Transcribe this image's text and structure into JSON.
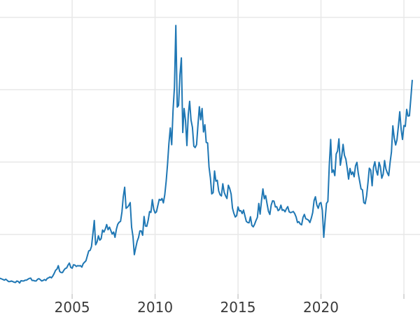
{
  "chart_data": {
    "type": "line",
    "title": "",
    "xlabel": "",
    "ylabel": "",
    "legend": null,
    "line_color": "#1f77b4",
    "grid_color": "#e8e8e8",
    "tick_color": "#cccccc",
    "label_color": "#3a3a3a",
    "background_color": "#ffffff",
    "grid_on": true,
    "xlim": [
      2000.65,
      2025.97
    ],
    "ylim": [
      2.2,
      53.0
    ],
    "x_gridlines": [
      2005,
      2010,
      2015,
      2020,
      2025
    ],
    "x_tick_labels": [
      "2005",
      "2010",
      "2015",
      "2020"
    ],
    "y_gridlines": [
      12.5,
      25,
      37.5,
      50
    ],
    "start_year": 2000.5833,
    "step_years": 0.083333,
    "values": [
      4.95,
      4.9,
      4.8,
      4.7,
      4.6,
      4.75,
      4.55,
      4.35,
      4.35,
      4.45,
      4.35,
      4.25,
      4.2,
      4.45,
      4.35,
      4.1,
      4.5,
      4.45,
      4.45,
      4.6,
      4.6,
      4.75,
      4.9,
      4.95,
      4.55,
      4.55,
      4.45,
      4.45,
      4.75,
      4.85,
      4.65,
      4.45,
      4.55,
      4.7,
      4.55,
      4.9,
      5.0,
      5.15,
      5.0,
      5.3,
      5.75,
      6.3,
      6.5,
      7.1,
      6.1,
      5.9,
      5.9,
      6.3,
      6.6,
      6.7,
      7.2,
      7.55,
      6.8,
      6.65,
      7.25,
      7.2,
      6.95,
      7.1,
      7.05,
      7.1,
      6.85,
      7.45,
      7.7,
      7.95,
      8.8,
      9.65,
      9.75,
      10.4,
      12.6,
      14.9,
      10.7,
      11.2,
      12.25,
      11.5,
      11.75,
      13.25,
      12.9,
      13.45,
      14.2,
      13.3,
      13.75,
      13.15,
      12.55,
      12.9,
      12.0,
      13.4,
      14.25,
      14.6,
      14.75,
      16.35,
      19.0,
      20.65,
      17.0,
      17.2,
      17.5,
      18.0,
      13.75,
      12.1,
      9.0,
      10.2,
      11.3,
      11.95,
      13.1,
      13.1,
      12.35,
      15.6,
      13.95,
      13.9,
      14.95,
      16.45,
      16.3,
      18.5,
      16.85,
      16.2,
      16.4,
      17.5,
      18.55,
      18.4,
      18.7,
      17.95,
      19.35,
      21.7,
      24.55,
      28.2,
      30.9,
      28.0,
      33.9,
      37.9,
      48.6,
      34.5,
      34.8,
      40.1,
      43.0,
      30.1,
      34.25,
      32.2,
      27.85,
      33.25,
      35.5,
      32.25,
      31.0,
      27.75,
      27.5,
      28.0,
      31.4,
      34.55,
      32.3,
      34.25,
      30.2,
      31.45,
      28.4,
      28.3,
      24.15,
      22.25,
      19.5,
      19.7,
      23.45,
      21.7,
      21.85,
      20.0,
      19.35,
      19.15,
      21.25,
      19.75,
      19.15,
      18.7,
      21.0,
      20.4,
      19.45,
      17.05,
      16.15,
      15.5,
      15.75,
      17.25,
      16.55,
      16.6,
      16.1,
      16.7,
      15.7,
      14.75,
      14.55,
      14.5,
      15.55,
      14.05,
      13.8,
      14.25,
      14.9,
      15.45,
      17.85,
      16.0,
      18.35,
      20.35,
      18.65,
      19.2,
      17.8,
      16.5,
      15.95,
      17.55,
      18.3,
      18.25,
      17.25,
      17.3,
      16.6,
      16.8,
      17.55,
      16.65,
      16.75,
      16.4,
      16.95,
      17.3,
      16.4,
      16.25,
      16.35,
      16.45,
      16.1,
      15.5,
      14.55,
      14.7,
      14.3,
      14.15,
      15.45,
      15.95,
      15.2,
      15.1,
      14.95,
      14.55,
      15.3,
      16.25,
      18.35,
      19.0,
      17.6,
      17.0,
      17.85,
      18.0,
      16.65,
      12.0,
      15.1,
      17.85,
      18.2,
      24.4,
      28.9,
      23.2,
      23.65,
      22.65,
      26.4,
      26.9,
      29.0,
      24.45,
      25.9,
      28.05,
      26.15,
      25.5,
      23.95,
      22.05,
      23.9,
      22.85,
      23.3,
      22.45,
      24.35,
      24.95,
      23.05,
      21.7,
      20.35,
      20.2,
      18.0,
      17.8,
      19.15,
      21.45,
      23.95,
      23.6,
      20.9,
      24.1,
      25.05,
      23.55,
      22.75,
      24.95,
      24.2,
      22.2,
      22.9,
      25.25,
      23.8,
      23.15,
      22.65,
      24.95,
      26.7,
      31.25,
      29.15,
      27.95,
      28.85,
      31.15,
      33.7,
      30.6,
      28.9,
      31.3,
      31.15,
      34.1,
      32.95,
      33.0,
      36.0,
      39.1
    ]
  }
}
